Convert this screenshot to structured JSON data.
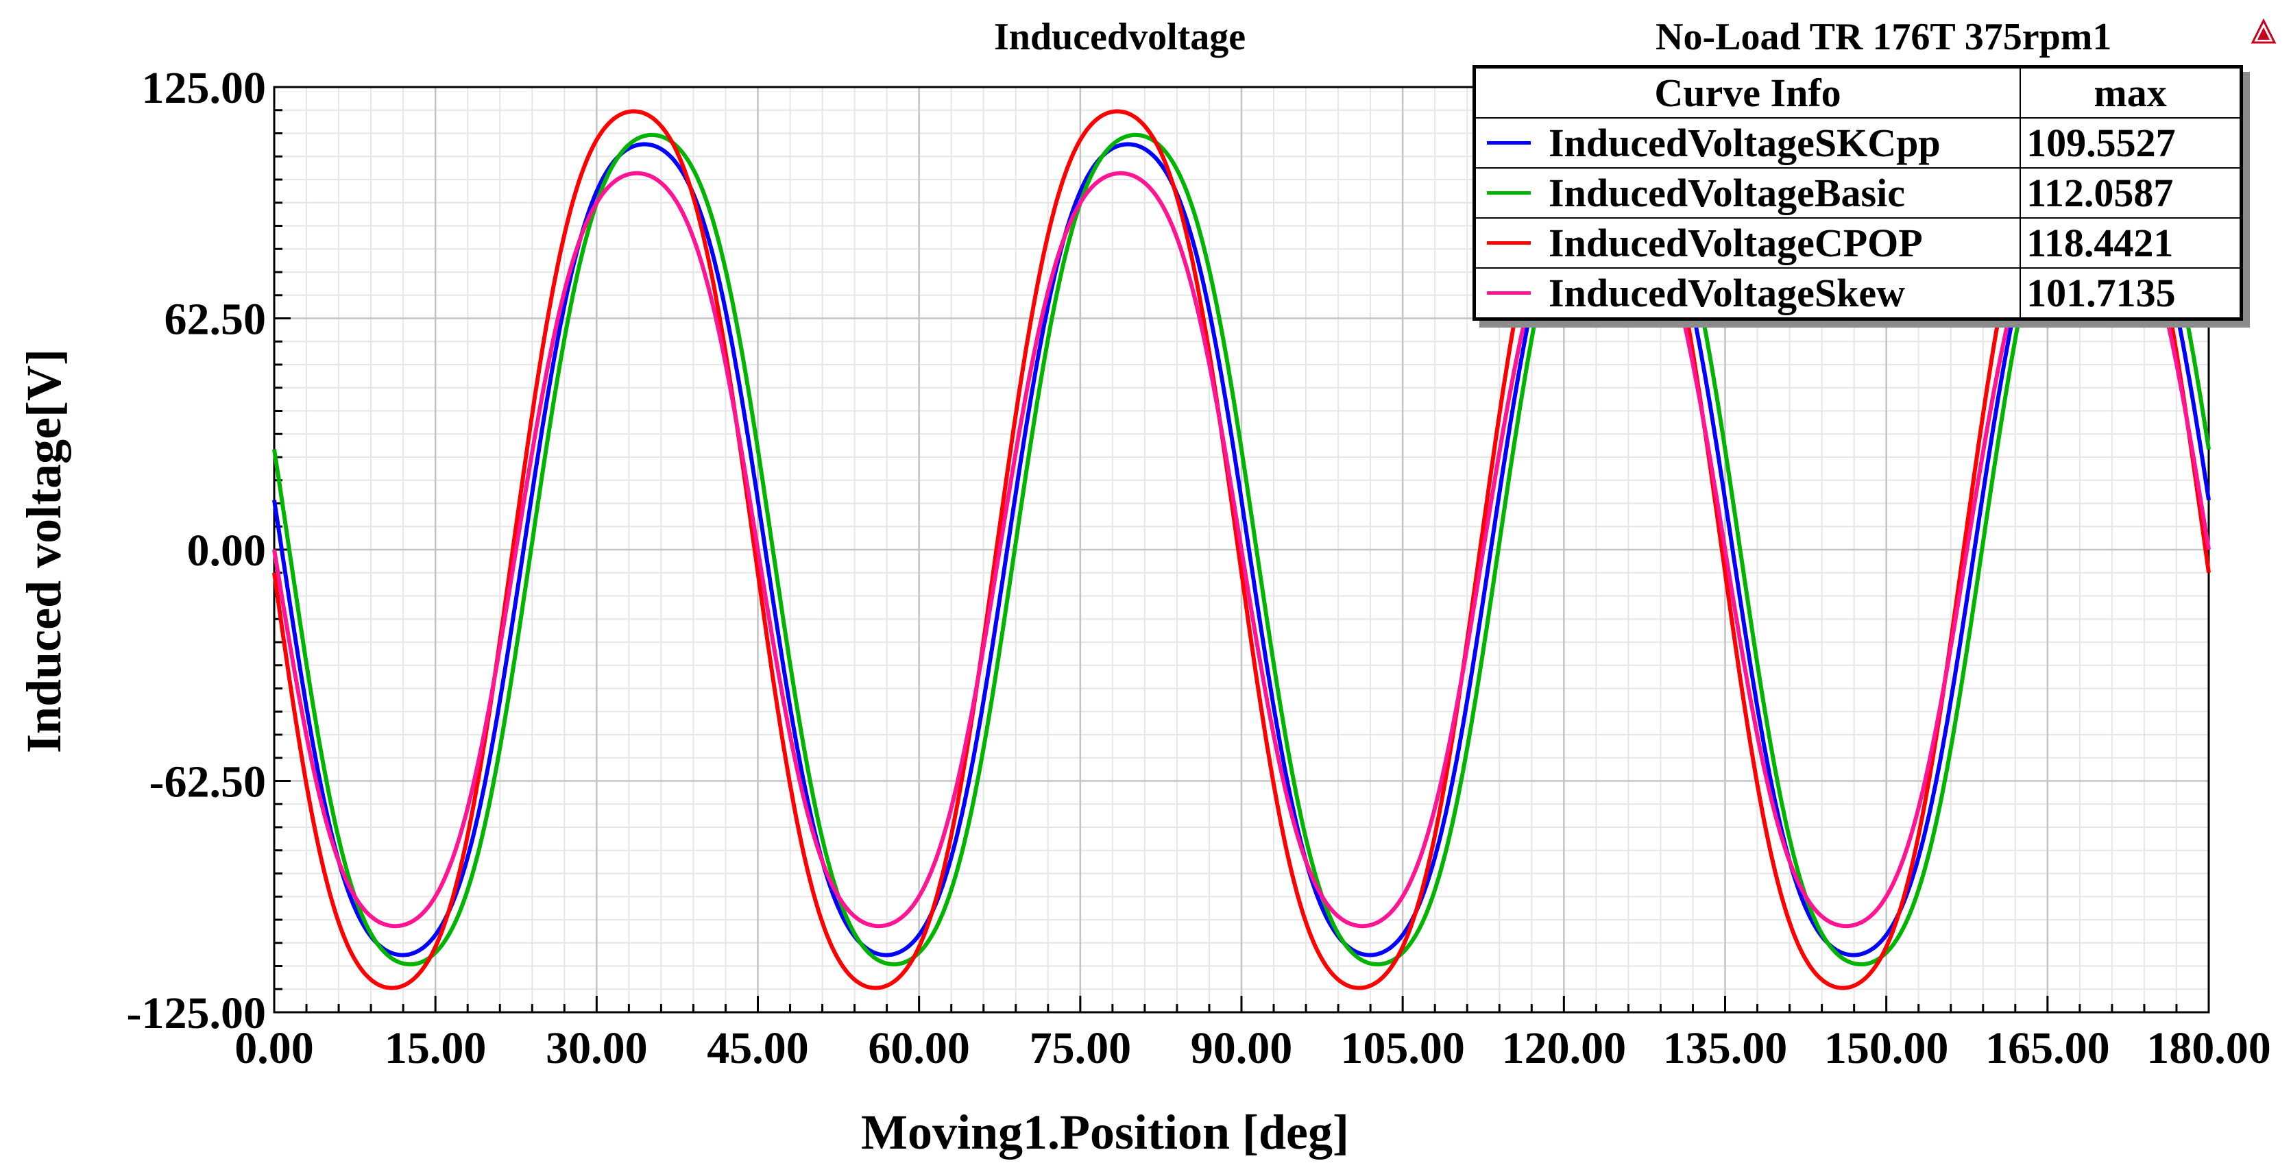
{
  "chart_data": {
    "type": "line",
    "title": "Inducedvoltage",
    "subtitle": "No-Load TR 176T 375rpm1",
    "xlabel": "Moving1.Position [deg]",
    "ylabel": "Induced voltage[V]",
    "xlim": [
      0,
      180
    ],
    "ylim": [
      -125,
      125
    ],
    "x_ticks": [
      "0.00",
      "15.00",
      "30.00",
      "45.00",
      "60.00",
      "75.00",
      "90.00",
      "105.00",
      "120.00",
      "135.00",
      "150.00",
      "165.00",
      "180.00"
    ],
    "y_ticks": [
      "125.00",
      "62.50",
      "0.00",
      "-62.50",
      "-125.00"
    ],
    "grid": true,
    "period_deg": 45,
    "zero_crossings_deg": [
      0,
      22.5,
      45,
      67.5,
      90,
      112.5,
      135,
      157.5,
      180
    ],
    "legend": {
      "header": [
        "Curve Info",
        "max"
      ],
      "placement": "top-right"
    },
    "series": [
      {
        "name": "InducedVoltageSKCpp",
        "color": "#0000ff",
        "max": "109.5527",
        "amplitude": 109.5527,
        "phase_shift_deg": 0.7
      },
      {
        "name": "InducedVoltageBasic",
        "color": "#00b400",
        "max": "112.0587",
        "amplitude": 112.0587,
        "phase_shift_deg": 1.4
      },
      {
        "name": "InducedVoltageCPOP",
        "color": "#ff0000",
        "max": "118.4421",
        "amplitude": 118.4421,
        "phase_shift_deg": -0.3
      },
      {
        "name": "InducedVoltageSkew",
        "color": "#ff1493",
        "max": "101.7135",
        "amplitude": 101.7135,
        "phase_shift_deg": 0.0
      }
    ]
  }
}
